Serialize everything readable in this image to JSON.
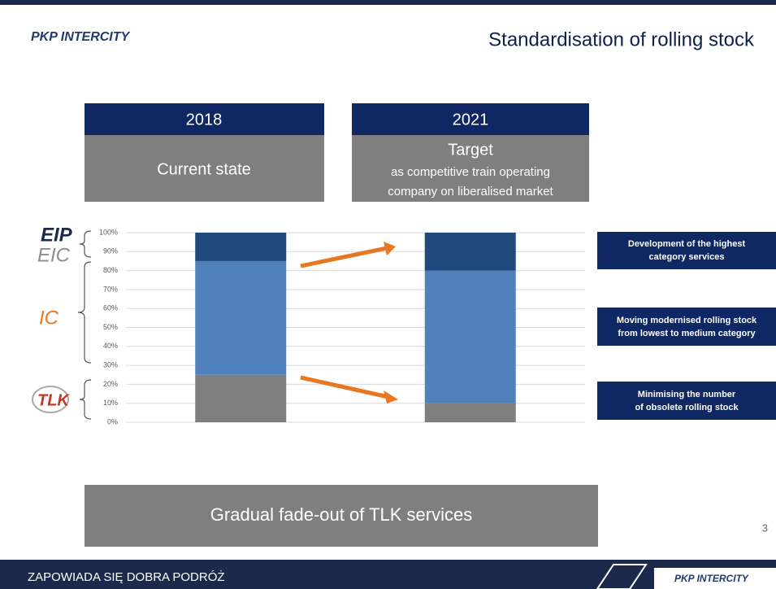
{
  "logo": "PKP INTERCITY",
  "title": "Standardisation of rolling stock",
  "columns": [
    {
      "year": "2018",
      "lines": [
        "Current state"
      ]
    },
    {
      "year": "2021",
      "lines": [
        "Target",
        "as competitive train operating",
        "company on liberalised market"
      ]
    }
  ],
  "category_labels": [
    "EIP",
    "EIC",
    "IC",
    "TLK"
  ],
  "notes": [
    [
      "Development of the highest",
      "category services"
    ],
    [
      "Moving modernised rolling stock",
      "from lowest to medium category"
    ],
    [
      "Minimising the number",
      "of obsolete rolling stock"
    ]
  ],
  "banner": "Gradual fade-out of TLK services",
  "page_number": "3",
  "footer": "ZAPOWIADA SIĘ  DOBRA PODRÓŻ",
  "chart_data": {
    "type": "stacked_bar",
    "categories": [
      null,
      null
    ],
    "series": [
      {
        "color": "#7f7f7f",
        "values": [
          25,
          10
        ]
      },
      {
        "color": "#4f81bd",
        "values": [
          60,
          70
        ]
      },
      {
        "color": "#1f497d",
        "values": [
          15,
          20
        ]
      }
    ],
    "ylim": [
      0,
      100
    ],
    "yticks": [
      {
        "value": 0,
        "label": "0%"
      },
      {
        "value": 10,
        "label": "10%"
      },
      {
        "value": 20,
        "label": "20%"
      },
      {
        "value": 30,
        "label": "30%"
      },
      {
        "value": 40,
        "label": "40%"
      },
      {
        "value": 50,
        "label": "50%"
      },
      {
        "value": 60,
        "label": "60%"
      },
      {
        "value": 70,
        "label": "70%"
      },
      {
        "value": 80,
        "label": "80%"
      },
      {
        "value": 90,
        "label": "90%"
      },
      {
        "value": 100,
        "label": "100%"
      }
    ],
    "grid": true
  }
}
